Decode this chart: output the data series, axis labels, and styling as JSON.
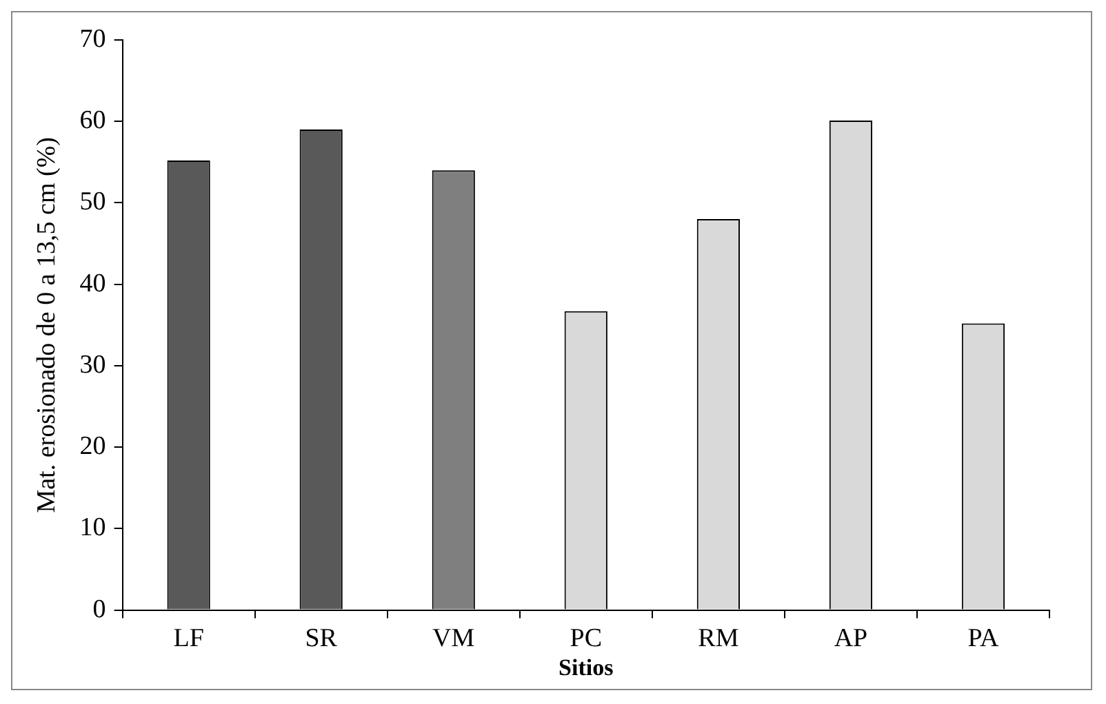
{
  "chart_data": {
    "type": "bar",
    "xlabel": "Sitios",
    "ylabel": "Mat. erosionado de 0 a 13,5 cm (%)",
    "categories": [
      "LF",
      "SR",
      "VM",
      "PC",
      "RM",
      "AP",
      "PA"
    ],
    "values": [
      55.2,
      59,
      54,
      36.7,
      48,
      60.1,
      35.2
    ],
    "colors": [
      "#595959",
      "#595959",
      "#7f7f7f",
      "#d9d9d9",
      "#d9d9d9",
      "#d9d9d9",
      "#d9d9d9"
    ],
    "ylim": [
      0,
      70
    ],
    "yticks": [
      0,
      10,
      20,
      30,
      40,
      50,
      60,
      70
    ],
    "grid": false,
    "legend": false
  }
}
